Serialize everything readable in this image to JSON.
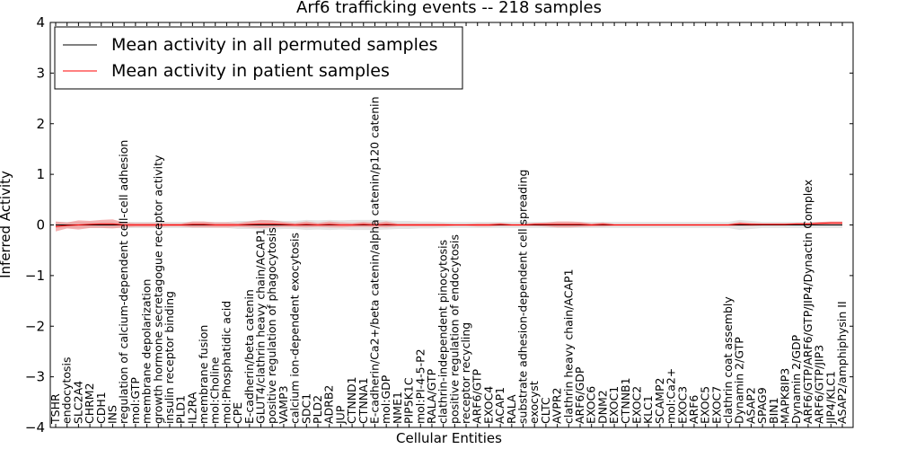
{
  "chart_data": {
    "type": "line",
    "title": "Arf6 trafficking events -- 218 samples",
    "xlabel": "Cellular Entities",
    "ylabel": "Inferred Activity",
    "ylim": [
      -4,
      4
    ],
    "yticks": [
      -4,
      -3,
      -2,
      -1,
      0,
      1,
      2,
      3,
      4
    ],
    "ytick_labels": [
      "−4",
      "−3",
      "−2",
      "−1",
      "0",
      "1",
      "2",
      "3",
      "4"
    ],
    "grid": false,
    "legend_position": "top-left",
    "categories": [
      "TSHR",
      "endocytosis",
      "SLC2A4",
      "CHRM2",
      "CDH1",
      "INS",
      "regulation of calcium-dependent cell-cell adhesion",
      "mol:GTP",
      "membrane depolarization",
      "growth hormone secretagogue receptor activity",
      "insulin receptor binding",
      "PLD1",
      "IL2RA",
      "membrane fusion",
      "mol:Choline",
      "mol:Phosphatidic acid",
      "CPE",
      "E-cadherin/beta catenin",
      "GLUT4/clathrin heavy chain/ACAP1",
      "positive regulation of phagocytosis",
      "VAMP3",
      "calcium ion-dependent exocytosis",
      "SDC1",
      "PLD2",
      "ADRB2",
      "JUP",
      "CTNND1",
      "CTNNA1",
      "E-cadherin/Ca2+/beta catenin/alpha catenin/p120 catenin",
      "mol:GDP",
      "NME1",
      "PIP5K1C",
      "mol:PI-4-5-P2",
      "RALA/GTP",
      "clathrin-independent pinocytosis",
      "positive regulation of endocytosis",
      "receptor recycling",
      "ARF6/GTP",
      "EXOC4",
      "ACAP1",
      "RALA",
      "substrate adhesion-dependent cell spreading",
      "exocyst",
      "CLTC",
      "AVPR2",
      "clathrin heavy chain/ACAP1",
      "ARF6/GDP",
      "EXOC6",
      "DNM2",
      "EXOC1",
      "CTNNB1",
      "EXOC2",
      "KLC1",
      "SCAMP2",
      "mol:Ca2+",
      "EXOC3",
      "ARF6",
      "EXOC5",
      "EXOC7",
      "clathrin coat assembly",
      "Dynamin 2/GTP",
      "ASAP2",
      "SPAG9",
      "BIN1",
      "MAPK8IP3",
      "Dynamin 2/GDP",
      "ARF6/GTP/ARF6/GTP/JIP4/Dynactin Complex",
      "ARF6/GTP/JIP3",
      "JIP4/KLC1",
      "ASAP2/amphiphysin II"
    ],
    "series": [
      {
        "name": "Mean activity in all permuted samples",
        "color": "#000000",
        "values": [
          0,
          0,
          0,
          0,
          0,
          0,
          0,
          0,
          0,
          0,
          0,
          0,
          0,
          0,
          0,
          0,
          0,
          0,
          0,
          0,
          0,
          0,
          0,
          0,
          0,
          0,
          0,
          0,
          0,
          0,
          0,
          0,
          0,
          0,
          0,
          0,
          0,
          0,
          0,
          0,
          0,
          0,
          0,
          0,
          0,
          0,
          0,
          0,
          0,
          0,
          0,
          0,
          0,
          0,
          0,
          0,
          0,
          0,
          0,
          0,
          0,
          0,
          0,
          0,
          0,
          0,
          0,
          0,
          0,
          0
        ],
        "band": [
          0.06,
          0.06,
          0.06,
          0.06,
          0.06,
          0.06,
          0.06,
          0.06,
          0.06,
          0.06,
          0.06,
          0.06,
          0.06,
          0.06,
          0.06,
          0.06,
          0.08,
          0.08,
          0.09,
          0.09,
          0.08,
          0.08,
          0.1,
          0.09,
          0.1,
          0.09,
          0.1,
          0.1,
          0.1,
          0.09,
          0.08,
          0.08,
          0.07,
          0.07,
          0.06,
          0.06,
          0.06,
          0.06,
          0.06,
          0.06,
          0.06,
          0.06,
          0.06,
          0.06,
          0.06,
          0.06,
          0.06,
          0.06,
          0.06,
          0.06,
          0.06,
          0.06,
          0.06,
          0.06,
          0.06,
          0.06,
          0.06,
          0.06,
          0.06,
          0.06,
          0.1,
          0.08,
          0.06,
          0.06,
          0.06,
          0.06,
          0.06,
          0.06,
          0.06,
          0.06
        ]
      },
      {
        "name": "Mean activity in patient samples",
        "color": "#ff0000",
        "fill": "#f08080",
        "values": [
          -0.03,
          -0.01,
          0.0,
          0.01,
          0.02,
          0.02,
          0.0,
          0.0,
          0.0,
          0.0,
          0.0,
          0.0,
          0.01,
          0.01,
          0.0,
          0.0,
          0.0,
          0.01,
          0.02,
          0.02,
          0.01,
          0.0,
          0.01,
          0.0,
          0.01,
          0.0,
          0.0,
          0.01,
          0.0,
          0.01,
          0.0,
          0.0,
          0.0,
          0.0,
          0.0,
          0.0,
          0.0,
          0.0,
          0.0,
          0.01,
          0.0,
          0.0,
          0.01,
          0.01,
          0.01,
          0.01,
          0.01,
          0.0,
          0.01,
          0.0,
          0.0,
          0.0,
          0.0,
          0.0,
          0.0,
          0.0,
          0.0,
          0.0,
          0.0,
          0.0,
          0.02,
          0.01,
          0.01,
          0.01,
          0.01,
          0.02,
          0.02,
          0.03,
          0.04,
          0.04
        ],
        "band": [
          0.1,
          0.06,
          0.09,
          0.07,
          0.08,
          0.09,
          0.05,
          0.04,
          0.04,
          0.04,
          0.03,
          0.03,
          0.06,
          0.06,
          0.05,
          0.05,
          0.04,
          0.06,
          0.08,
          0.07,
          0.05,
          0.04,
          0.06,
          0.04,
          0.06,
          0.05,
          0.04,
          0.05,
          0.04,
          0.06,
          0.03,
          0.03,
          0.03,
          0.03,
          0.03,
          0.02,
          0.02,
          0.03,
          0.03,
          0.03,
          0.02,
          0.02,
          0.03,
          0.04,
          0.06,
          0.06,
          0.05,
          0.03,
          0.04,
          0.02,
          0.02,
          0.02,
          0.02,
          0.02,
          0.02,
          0.02,
          0.02,
          0.02,
          0.02,
          0.02,
          0.04,
          0.03,
          0.02,
          0.02,
          0.02,
          0.02,
          0.02,
          0.03,
          0.03,
          0.03
        ]
      }
    ]
  }
}
